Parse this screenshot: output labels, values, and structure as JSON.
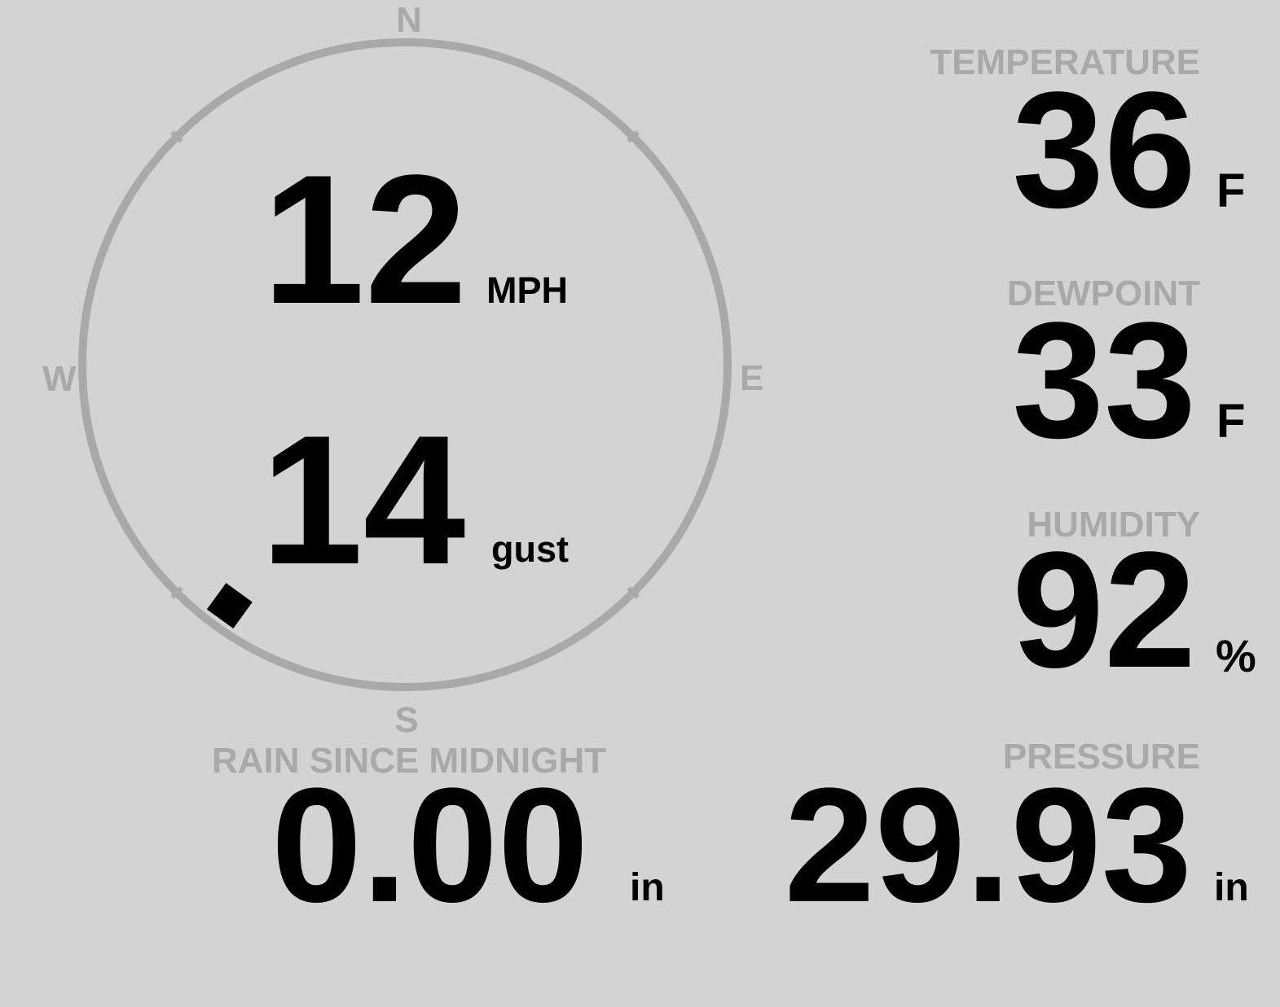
{
  "colors": {
    "background": "#d3d3d3",
    "label": "#a9a9a9",
    "value": "#000000"
  },
  "wind": {
    "speed": "12",
    "speed_unit": "MPH",
    "gust": "14",
    "gust_unit": "gust",
    "direction_degrees": 216,
    "compass": {
      "n": "N",
      "s": "S",
      "e": "E",
      "w": "W"
    }
  },
  "temperature": {
    "label": "TEMPERATURE",
    "value": "36",
    "unit": "F"
  },
  "dewpoint": {
    "label": "DEWPOINT",
    "value": "33",
    "unit": "F"
  },
  "humidity": {
    "label": "HUMIDITY",
    "value": "92",
    "unit": "%"
  },
  "rain": {
    "label": "RAIN SINCE MIDNIGHT",
    "value": "0.00",
    "unit": "in"
  },
  "pressure": {
    "label": "PRESSURE",
    "value": "29.93",
    "unit": "in"
  }
}
